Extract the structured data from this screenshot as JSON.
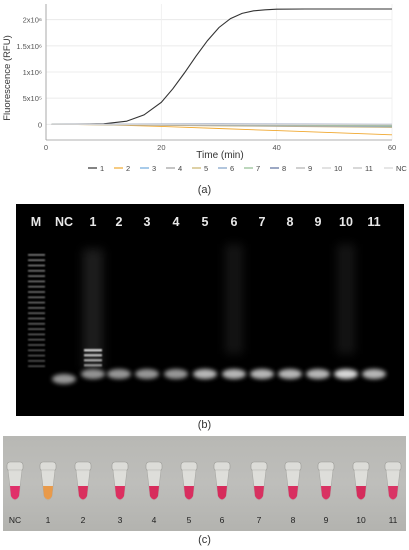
{
  "panel_a": {
    "caption": "(a)",
    "chart_data": {
      "type": "line",
      "xlabel": "Time (min)",
      "ylabel": "Fluorescence (RFU)",
      "xlim": [
        0,
        60
      ],
      "ylim": [
        -300000,
        2300000
      ],
      "x_ticks": [
        "0",
        "20",
        "40",
        "60"
      ],
      "y_ticks": [
        "0",
        "5x10⁵",
        "1x10⁶",
        "1.5x10⁶",
        "2x10⁶"
      ],
      "y_tick_values": [
        0,
        500000,
        1000000,
        1500000,
        2000000
      ],
      "x_tick_values": [
        0,
        20,
        40,
        60
      ],
      "series": [
        {
          "name": "1",
          "color": "#333333",
          "x": [
            1,
            5,
            10,
            14,
            17,
            20,
            22,
            24,
            26,
            28,
            30,
            32,
            34,
            36,
            38,
            40,
            45,
            50,
            55,
            60
          ],
          "y": [
            0,
            0,
            10000,
            60000,
            180000,
            420000,
            680000,
            980000,
            1300000,
            1600000,
            1850000,
            2020000,
            2120000,
            2170000,
            2190000,
            2200000,
            2205000,
            2205000,
            2205000,
            2205000
          ]
        },
        {
          "name": "2",
          "color": "#f0a830",
          "x": [
            1,
            10,
            20,
            30,
            40,
            50,
            60
          ],
          "y": [
            0,
            -10000,
            -40000,
            -80000,
            -120000,
            -160000,
            -200000
          ]
        },
        {
          "name": "3",
          "color": "#6fa8dc",
          "x": [
            1,
            30,
            60
          ],
          "y": [
            0,
            -20000,
            -40000
          ]
        },
        {
          "name": "4",
          "color": "#9e9e9e",
          "x": [
            1,
            30,
            60
          ],
          "y": [
            0,
            -5000,
            -10000
          ]
        },
        {
          "name": "5",
          "color": "#c9b26a",
          "x": [
            1,
            30,
            60
          ],
          "y": [
            0,
            -30000,
            -60000
          ]
        },
        {
          "name": "6",
          "color": "#7f9fc6",
          "x": [
            1,
            30,
            60
          ],
          "y": [
            0,
            -10000,
            -20000
          ]
        },
        {
          "name": "7",
          "color": "#8fbc8f",
          "x": [
            1,
            30,
            60
          ],
          "y": [
            0,
            -15000,
            -30000
          ]
        },
        {
          "name": "8",
          "color": "#5a6f9c",
          "x": [
            1,
            30,
            60
          ],
          "y": [
            0,
            5000,
            0
          ]
        },
        {
          "name": "9",
          "color": "#b0b0b0",
          "x": [
            1,
            30,
            60
          ],
          "y": [
            0,
            -25000,
            -50000
          ]
        },
        {
          "name": "10",
          "color": "#cfcfcf",
          "x": [
            1,
            30,
            60
          ],
          "y": [
            0,
            0,
            -5000
          ]
        },
        {
          "name": "11",
          "color": "#bdbdbd",
          "x": [
            1,
            30,
            60
          ],
          "y": [
            0,
            -8000,
            -15000
          ]
        },
        {
          "name": "NC",
          "color": "#d6d6d6",
          "x": [
            1,
            30,
            60
          ],
          "y": [
            0,
            -3000,
            -8000
          ]
        }
      ]
    }
  },
  "panel_b": {
    "caption": "(b)",
    "lanes": [
      "M",
      "NC",
      "1",
      "2",
      "3",
      "4",
      "5",
      "6",
      "7",
      "8",
      "9",
      "10",
      "11"
    ]
  },
  "panel_c": {
    "caption": "(c)",
    "tubes": [
      {
        "label": "NC",
        "color": "#e0306a"
      },
      {
        "label": "1",
        "color": "#e99a4a"
      },
      {
        "label": "2",
        "color": "#d9305e"
      },
      {
        "label": "3",
        "color": "#dc2f60"
      },
      {
        "label": "4",
        "color": "#d72c5c"
      },
      {
        "label": "5",
        "color": "#d82e5f"
      },
      {
        "label": "6",
        "color": "#d62b5b"
      },
      {
        "label": "7",
        "color": "#d73160"
      },
      {
        "label": "8",
        "color": "#d82f60"
      },
      {
        "label": "9",
        "color": "#d93262"
      },
      {
        "label": "10",
        "color": "#d52c5c"
      },
      {
        "label": "11",
        "color": "#d93565"
      }
    ]
  }
}
